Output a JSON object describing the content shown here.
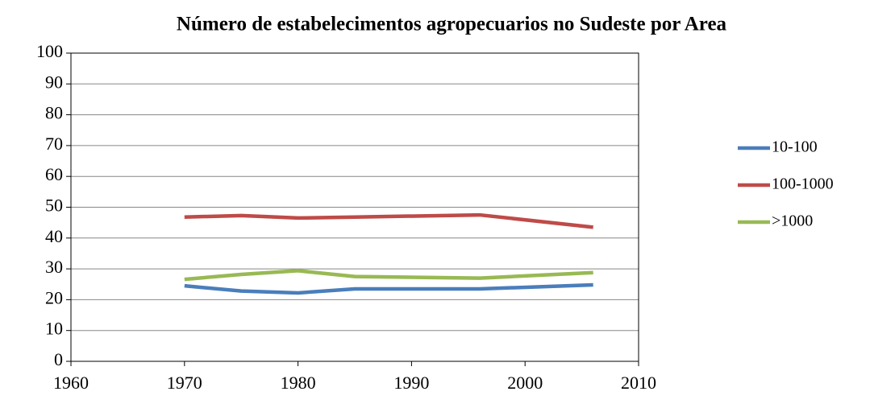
{
  "chart_data": {
    "type": "line",
    "title": "Número de estabelecimentos agropecuarios no Sudeste por Area",
    "x": [
      1970,
      1975,
      1980,
      1985,
      1996,
      2006
    ],
    "series": [
      {
        "name": "10-100",
        "color": "#4a7ebb",
        "values": [
          24.5,
          22.8,
          22.2,
          23.5,
          23.5,
          24.8
        ]
      },
      {
        "name": "100-1000",
        "color": "#be4b48",
        "values": [
          46.8,
          47.3,
          46.5,
          46.8,
          47.5,
          43.5
        ]
      },
      {
        "name": ">1000",
        "color": "#98b954",
        "values": [
          26.6,
          28.2,
          29.4,
          27.5,
          27.0,
          28.8
        ]
      }
    ],
    "xlim": [
      1960,
      2010
    ],
    "xticks": [
      1960,
      1970,
      1980,
      1990,
      2000,
      2010
    ],
    "ylim": [
      0,
      100
    ],
    "yticks": [
      0,
      10,
      20,
      30,
      40,
      50,
      60,
      70,
      80,
      90,
      100
    ],
    "grid": true,
    "legend": "right"
  }
}
